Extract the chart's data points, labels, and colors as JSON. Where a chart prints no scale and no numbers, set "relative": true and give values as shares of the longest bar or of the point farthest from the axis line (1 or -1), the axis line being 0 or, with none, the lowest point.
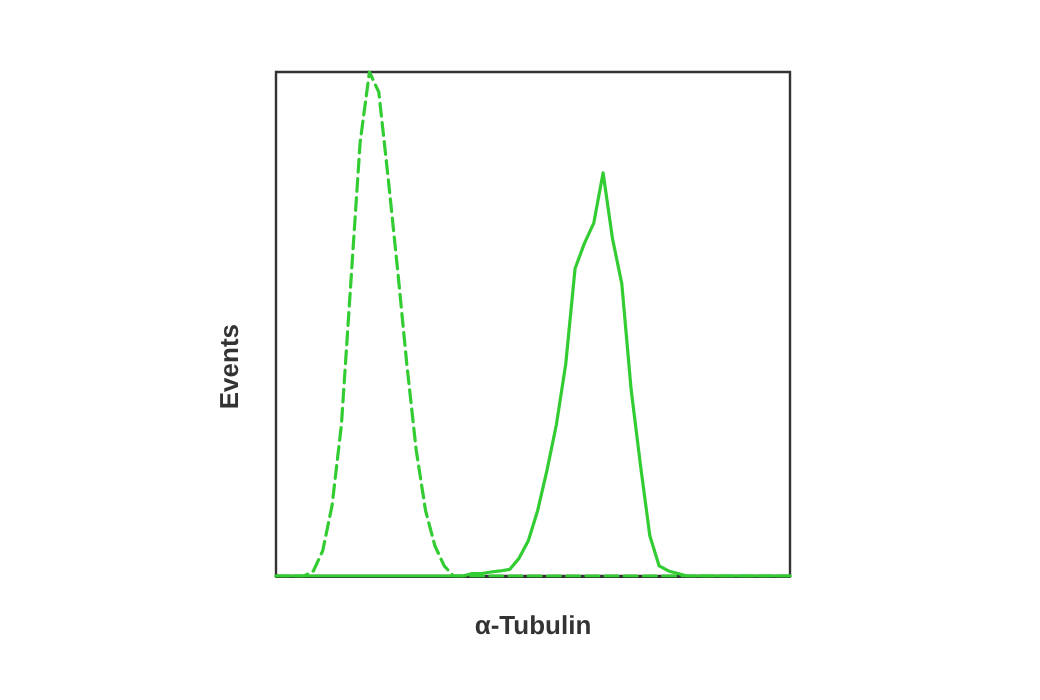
{
  "chart_data": {
    "type": "line",
    "xlabel": "α-Tubulin",
    "ylabel": "Events",
    "relative": true,
    "grid": false,
    "marker": "none",
    "categories": [
      null,
      null,
      null,
      null,
      null,
      null,
      null,
      null,
      null,
      null,
      null,
      null,
      null,
      null,
      null,
      null,
      null,
      null,
      null,
      null,
      null,
      null,
      null,
      null,
      null,
      null,
      null,
      null,
      null,
      null,
      null,
      null,
      null,
      null,
      null,
      null,
      null,
      null,
      null,
      null,
      null,
      null,
      null,
      null,
      null,
      null,
      null,
      null,
      null,
      null,
      null,
      null,
      null,
      null,
      null,
      null
    ],
    "series": [
      {
        "color": "#33cc33",
        "line_style": "dashed",
        "values": [
          0,
          0,
          0,
          0,
          0.01,
          0.05,
          0.14,
          0.3,
          0.58,
          0.86,
          1,
          0.96,
          0.79,
          0.61,
          0.42,
          0.25,
          0.13,
          0.06,
          0.02,
          0,
          0,
          0,
          0,
          0,
          0,
          0,
          0,
          0,
          0,
          0,
          0,
          0,
          0,
          0,
          0,
          0,
          0,
          0,
          0,
          0,
          0,
          0,
          0,
          0,
          0,
          0,
          0,
          0,
          0,
          0,
          0,
          0,
          0,
          0,
          0,
          0
        ]
      },
      {
        "color": "#33cc33",
        "line_style": "solid",
        "values": [
          0,
          0,
          0,
          0,
          0,
          0,
          0,
          0,
          0,
          0,
          0,
          0,
          0,
          0,
          0,
          0,
          0,
          0,
          0,
          0,
          0,
          0.005,
          0.005,
          0.008,
          0.01,
          0.013,
          0.035,
          0.07,
          0.13,
          0.21,
          0.3,
          0.42,
          0.61,
          0.66,
          0.7,
          0.8,
          0.67,
          0.58,
          0.37,
          0.22,
          0.08,
          0.02,
          0.01,
          0.005,
          0,
          0,
          0,
          0,
          0,
          0,
          0,
          0,
          0,
          0,
          0,
          0
        ]
      }
    ]
  }
}
